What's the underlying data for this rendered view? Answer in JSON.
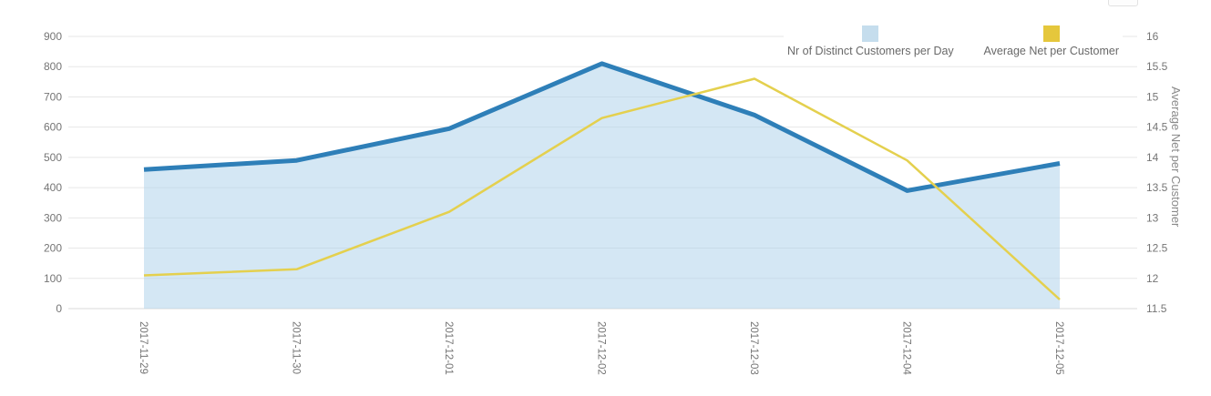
{
  "page": {
    "background": "#ffffff"
  },
  "chart_data": {
    "type": "line",
    "x": [
      "2017-11-29",
      "2017-11-30",
      "2017-12-01",
      "2017-12-02",
      "2017-12-03",
      "2017-12-04",
      "2017-12-05"
    ],
    "series": [
      {
        "name": "Nr of Distinct Customers per Day",
        "axis": "left",
        "style": "area-line",
        "line_color": "#2e7fb8",
        "fill_color": "rgba(176, 212, 235, 0.55)",
        "line_width": 5,
        "values": [
          460,
          490,
          595,
          810,
          640,
          390,
          480
        ]
      },
      {
        "name": "Average Net per Customer",
        "axis": "right",
        "style": "line",
        "line_color": "#e4d04e",
        "line_width": 2.5,
        "values": [
          12.05,
          12.15,
          13.1,
          14.65,
          15.3,
          13.95,
          11.65
        ]
      }
    ],
    "left_axis": {
      "min": 0,
      "max": 900,
      "step": 100,
      "tick_labels": [
        "0",
        "100",
        "200",
        "300",
        "400",
        "500",
        "600",
        "700",
        "800",
        "900"
      ]
    },
    "right_axis": {
      "min": 11.5,
      "max": 16,
      "step": 0.5,
      "title": "Average Net per Customer",
      "tick_labels": [
        "11.5",
        "12",
        "12.5",
        "13",
        "13.5",
        "14",
        "14.5",
        "15",
        "15.5",
        "16"
      ]
    },
    "grid": true,
    "grid_color": "#e7e7e7",
    "baseline_color": "#d9d9d9",
    "legend_position": "top-right",
    "legend": [
      {
        "label": "Nr of Distinct Customers per Day",
        "color": "#c5dded"
      },
      {
        "label": "Average Net per Customer",
        "color": "#e5c73c"
      }
    ],
    "title": "",
    "xlabel": ""
  }
}
